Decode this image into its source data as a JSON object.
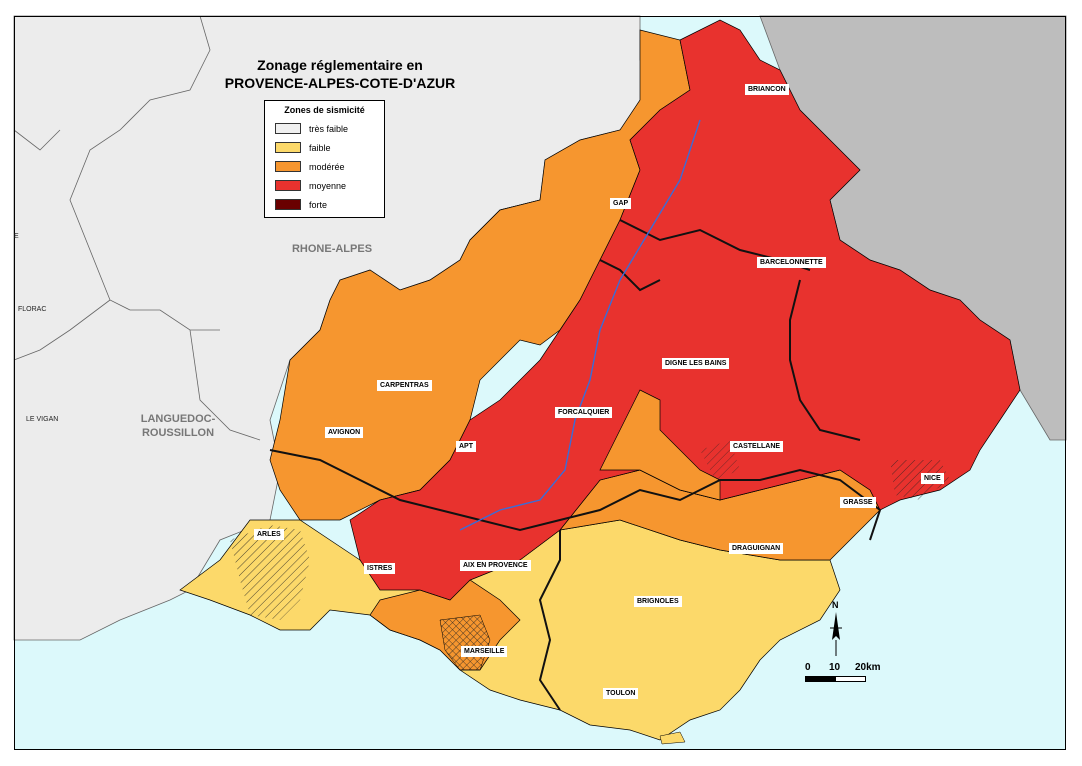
{
  "map": {
    "title_line1": "Zonage réglementaire en",
    "title_line2": "PROVENCE-ALPES-COTE-D'AZUR",
    "legend": {
      "title": "Zones de sismicité",
      "items": [
        {
          "label": "très faible",
          "color": "#f0f0f0"
        },
        {
          "label": "faible",
          "color": "#fcd96a"
        },
        {
          "label": "modérée",
          "color": "#f6962f"
        },
        {
          "label": "moyenne",
          "color": "#e8322e"
        },
        {
          "label": "forte",
          "color": "#6a0000"
        }
      ]
    },
    "regions": {
      "rhone": "RHONE-ALPES",
      "languedoc_1": "LANGUEDOC-",
      "languedoc_2": "ROUSSILLON"
    },
    "outside_places": {
      "florac": "FLORAC",
      "le_vigan": "LE VIGAN",
      "edge_e": "E"
    },
    "cities": {
      "briancon": "BRIANCON",
      "gap": "GAP",
      "barcelonnette": "BARCELONNETTE",
      "digne": "DIGNE LES BAINS",
      "carpentras": "CARPENTRAS",
      "forcalquier": "FORCALQUIER",
      "avignon": "AVIGNON",
      "apt": "APT",
      "castellane": "CASTELLANE",
      "nice": "NICE",
      "grasse": "GRASSE",
      "arles": "ARLES",
      "draguignan": "DRAGUIGNAN",
      "istres": "ISTRES",
      "aix": "AIX EN PROVENCE",
      "brignoles": "BRIGNOLES",
      "marseille": "MARSEILLE",
      "toulon": "TOULON"
    },
    "scale": {
      "zero": "0",
      "mid": "10",
      "end": "20km"
    },
    "north": "N",
    "colors": {
      "sea": "#dcf9fb",
      "land_out": "#ececec",
      "italy": "#bdbdbd",
      "tres_faible": "#f0f0f0",
      "faible": "#fcd96a",
      "moderee": "#f6962f",
      "moyenne": "#e8322e",
      "forte": "#6a0000"
    }
  }
}
